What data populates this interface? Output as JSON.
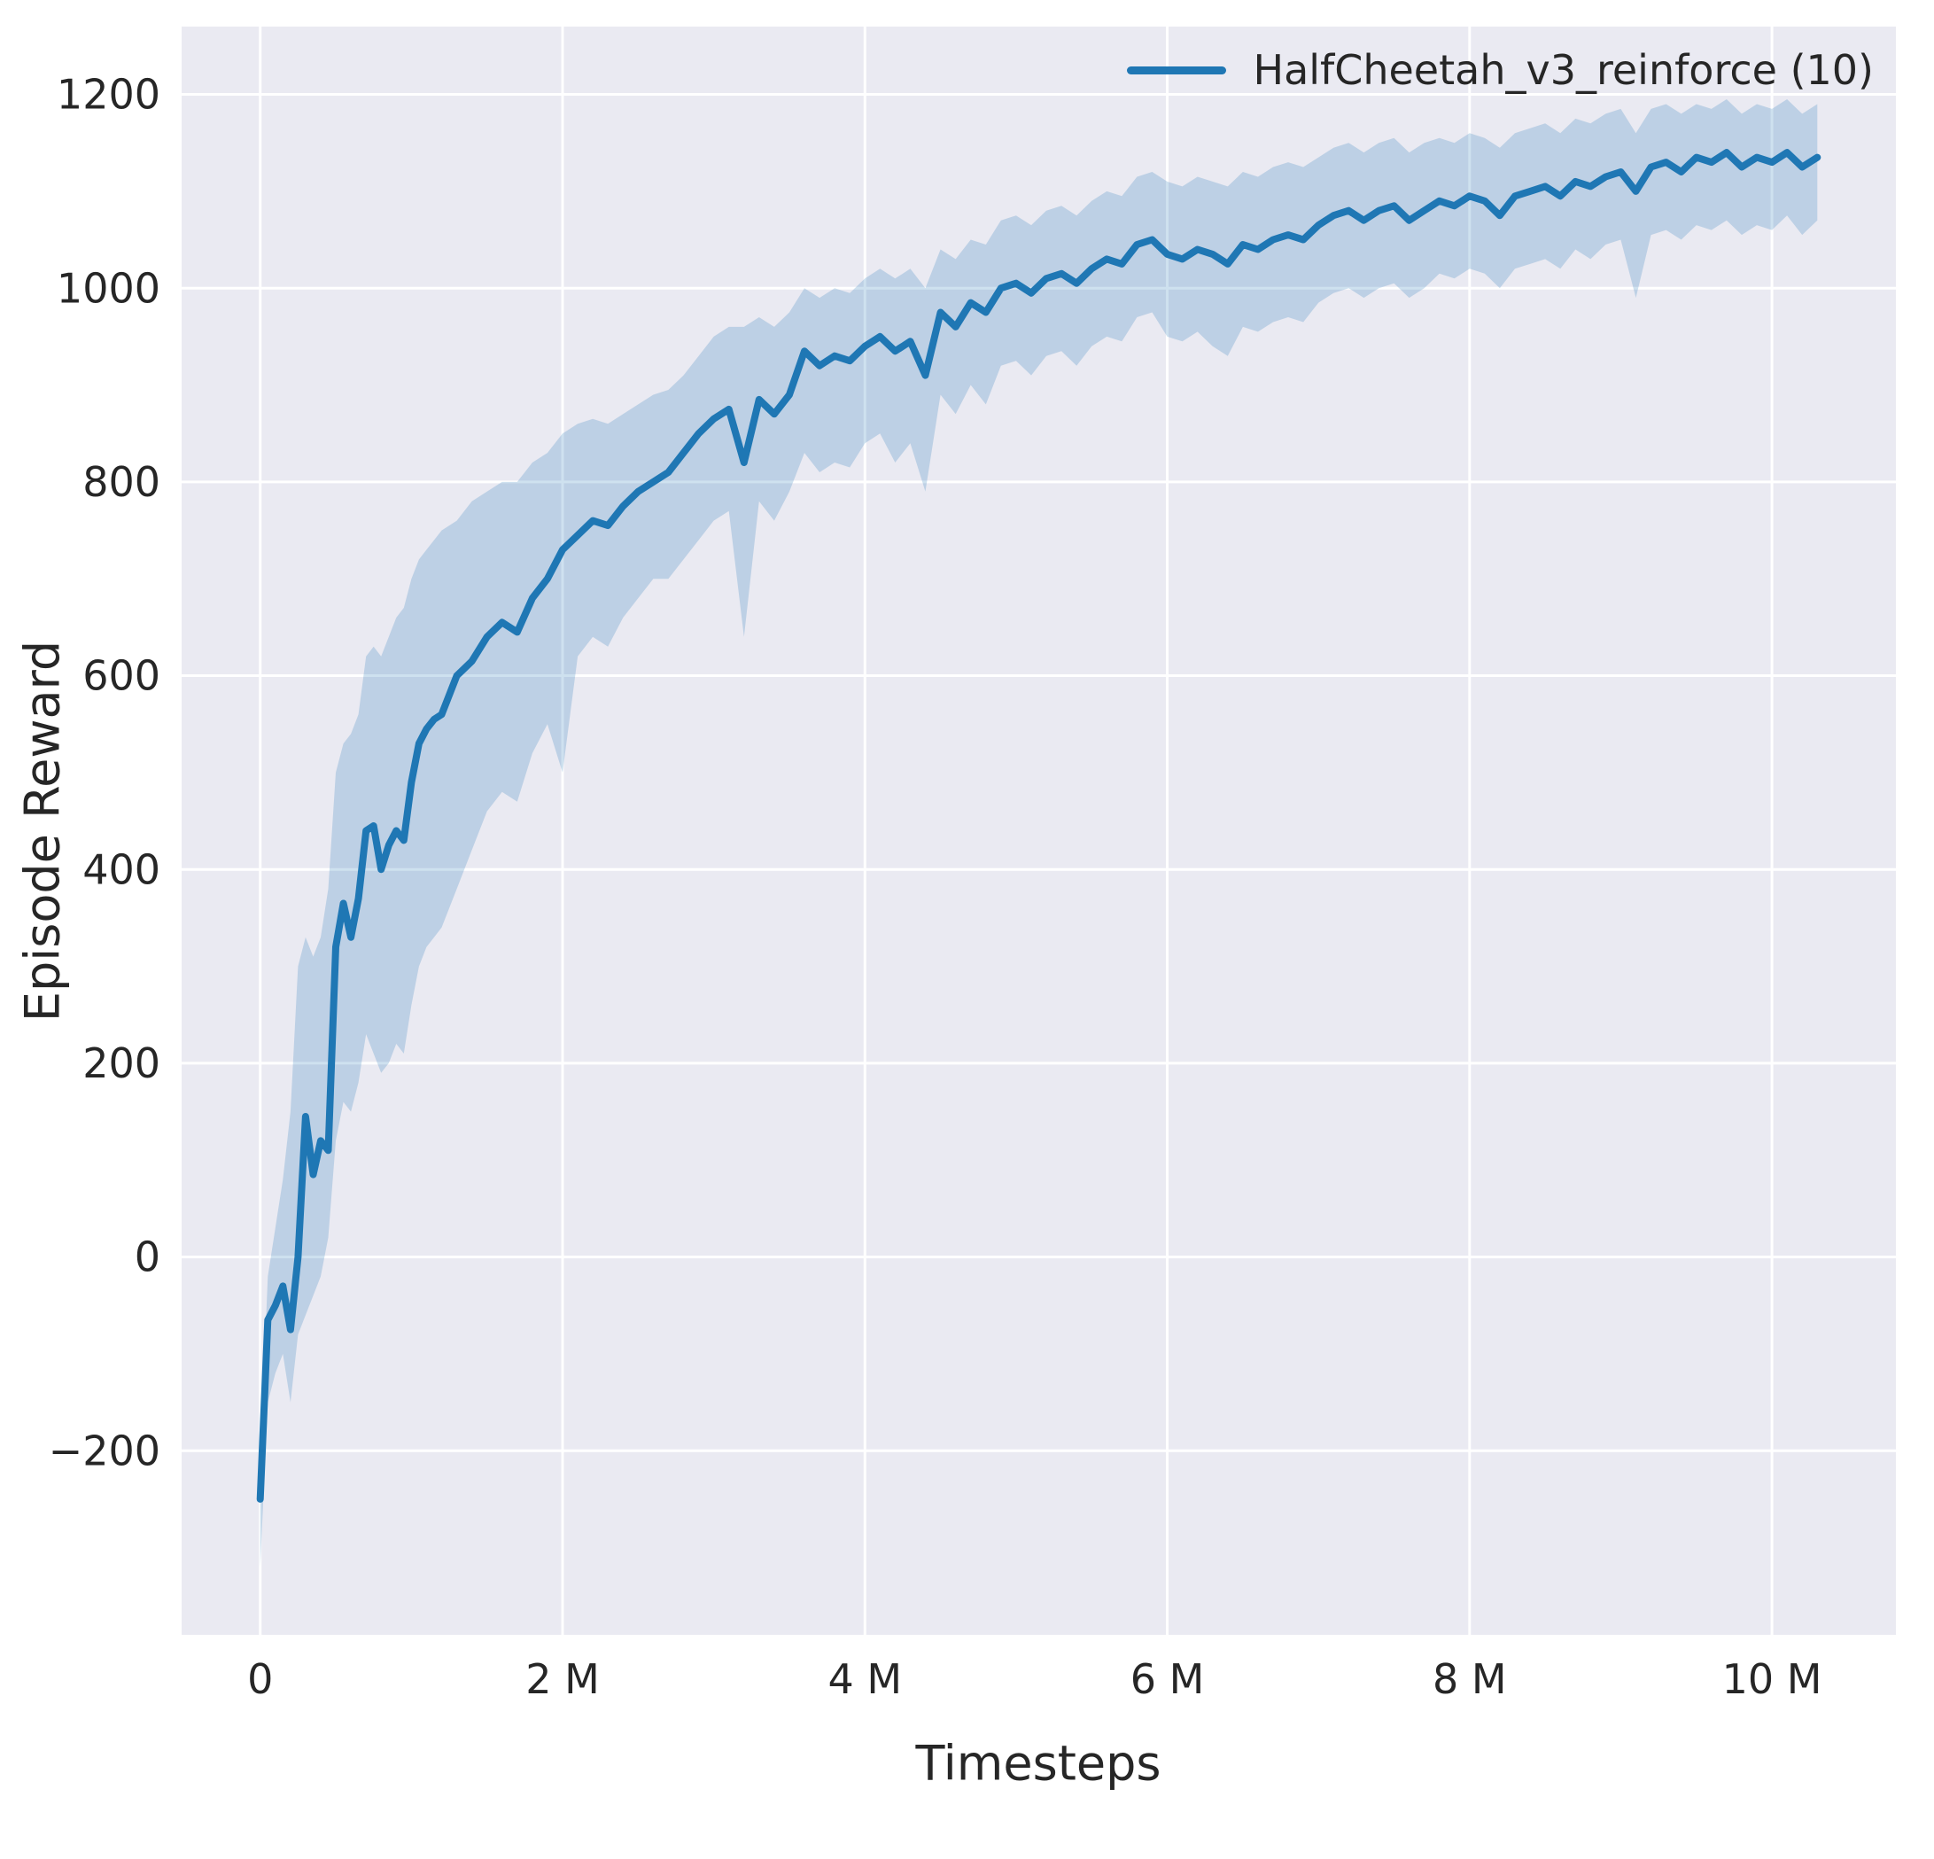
{
  "chart_data": {
    "type": "line",
    "title": "",
    "xlabel": "Timesteps",
    "ylabel": "Episode Reward",
    "legend_label": "HalfCheetah_v3_reinforce (10)",
    "legend_position": "upper right",
    "grid": true,
    "x_units": "millions of timesteps",
    "xlim": [
      -0.52,
      10.82
    ],
    "ylim": [
      -390,
      1270
    ],
    "xticks": {
      "values": [
        0,
        2,
        4,
        6,
        8,
        10
      ],
      "labels": [
        "0",
        "2 M",
        "4 M",
        "6 M",
        "8 M",
        "10 M"
      ]
    },
    "yticks": {
      "values": [
        -200,
        0,
        200,
        400,
        600,
        800,
        1000,
        1200
      ],
      "labels": [
        "−200",
        "0",
        "200",
        "400",
        "600",
        "800",
        "1000",
        "1200"
      ]
    },
    "style": {
      "line": "#1f77b4",
      "band": "#1f77b4",
      "band_opacity": 0.22,
      "panel_bg": "#eaeaf2",
      "grid": "#ffffff",
      "text": "#262626",
      "fig_bg": "#ffffff"
    },
    "series": [
      {
        "name": "HalfCheetah_v3_reinforce (10)",
        "x": [
          0.0,
          0.05,
          0.1,
          0.15,
          0.2,
          0.25,
          0.3,
          0.35,
          0.4,
          0.45,
          0.5,
          0.55,
          0.6,
          0.65,
          0.7,
          0.75,
          0.8,
          0.85,
          0.9,
          0.95,
          1.0,
          1.05,
          1.1,
          1.15,
          1.2,
          1.3,
          1.4,
          1.5,
          1.6,
          1.7,
          1.8,
          1.9,
          2.0,
          2.1,
          2.2,
          2.3,
          2.4,
          2.5,
          2.6,
          2.7,
          2.8,
          2.9,
          3.0,
          3.1,
          3.2,
          3.3,
          3.4,
          3.5,
          3.6,
          3.7,
          3.8,
          3.9,
          4.0,
          4.1,
          4.2,
          4.3,
          4.4,
          4.5,
          4.6,
          4.7,
          4.8,
          4.9,
          5.0,
          5.1,
          5.2,
          5.3,
          5.4,
          5.5,
          5.6,
          5.7,
          5.8,
          5.9,
          6.0,
          6.1,
          6.2,
          6.3,
          6.4,
          6.5,
          6.6,
          6.7,
          6.8,
          6.9,
          7.0,
          7.1,
          7.2,
          7.3,
          7.4,
          7.5,
          7.6,
          7.7,
          7.8,
          7.9,
          8.0,
          8.1,
          8.2,
          8.3,
          8.4,
          8.5,
          8.6,
          8.7,
          8.8,
          8.9,
          9.0,
          9.1,
          9.2,
          9.3,
          9.4,
          9.5,
          9.6,
          9.7,
          9.8,
          9.9,
          10.0,
          10.1,
          10.2,
          10.3
        ],
        "mean": [
          -250,
          -65,
          -50,
          -30,
          -75,
          0,
          145,
          85,
          120,
          110,
          320,
          365,
          330,
          370,
          440,
          445,
          400,
          425,
          440,
          430,
          490,
          530,
          545,
          555,
          560,
          600,
          615,
          640,
          655,
          645,
          680,
          700,
          730,
          745,
          760,
          755,
          775,
          790,
          800,
          810,
          830,
          850,
          865,
          875,
          820,
          885,
          870,
          890,
          935,
          920,
          930,
          925,
          940,
          950,
          935,
          945,
          910,
          975,
          960,
          985,
          975,
          1000,
          1005,
          995,
          1010,
          1015,
          1005,
          1020,
          1030,
          1025,
          1045,
          1050,
          1035,
          1030,
          1040,
          1035,
          1025,
          1045,
          1040,
          1050,
          1055,
          1050,
          1065,
          1075,
          1080,
          1070,
          1080,
          1085,
          1070,
          1080,
          1090,
          1085,
          1095,
          1090,
          1075,
          1095,
          1100,
          1105,
          1095,
          1110,
          1105,
          1115,
          1120,
          1100,
          1125,
          1130,
          1120,
          1135,
          1130,
          1140,
          1125,
          1135,
          1130,
          1140,
          1125,
          1135
        ],
        "band_low": [
          -320,
          -150,
          -120,
          -100,
          -150,
          -80,
          -60,
          -40,
          -20,
          20,
          120,
          160,
          150,
          180,
          230,
          210,
          190,
          200,
          220,
          210,
          260,
          300,
          320,
          330,
          340,
          380,
          420,
          460,
          480,
          470,
          520,
          550,
          500,
          620,
          640,
          630,
          660,
          680,
          700,
          700,
          720,
          740,
          760,
          770,
          640,
          780,
          760,
          790,
          830,
          810,
          820,
          815,
          840,
          850,
          820,
          840,
          790,
          890,
          870,
          900,
          880,
          920,
          925,
          910,
          930,
          935,
          920,
          940,
          950,
          945,
          970,
          975,
          950,
          945,
          955,
          940,
          930,
          960,
          955,
          965,
          970,
          965,
          985,
          995,
          1000,
          990,
          1000,
          1005,
          990,
          1000,
          1015,
          1010,
          1020,
          1015,
          1000,
          1020,
          1025,
          1030,
          1020,
          1040,
          1030,
          1045,
          1050,
          990,
          1055,
          1060,
          1050,
          1065,
          1060,
          1070,
          1055,
          1065,
          1060,
          1075,
          1055,
          1070
        ],
        "band_high": [
          -210,
          -20,
          30,
          80,
          150,
          300,
          330,
          310,
          330,
          380,
          500,
          530,
          540,
          560,
          620,
          630,
          620,
          640,
          660,
          670,
          700,
          720,
          730,
          740,
          750,
          760,
          780,
          790,
          800,
          800,
          820,
          830,
          850,
          860,
          865,
          860,
          870,
          880,
          890,
          895,
          910,
          930,
          950,
          960,
          960,
          970,
          960,
          975,
          1000,
          990,
          1000,
          995,
          1010,
          1020,
          1010,
          1020,
          1000,
          1040,
          1030,
          1050,
          1045,
          1070,
          1075,
          1065,
          1080,
          1085,
          1075,
          1090,
          1100,
          1095,
          1115,
          1120,
          1110,
          1105,
          1115,
          1110,
          1105,
          1120,
          1115,
          1125,
          1130,
          1125,
          1135,
          1145,
          1150,
          1140,
          1150,
          1155,
          1140,
          1150,
          1155,
          1150,
          1160,
          1155,
          1145,
          1160,
          1165,
          1170,
          1160,
          1175,
          1170,
          1180,
          1185,
          1160,
          1185,
          1190,
          1180,
          1190,
          1185,
          1195,
          1180,
          1190,
          1185,
          1195,
          1180,
          1190
        ]
      }
    ]
  }
}
